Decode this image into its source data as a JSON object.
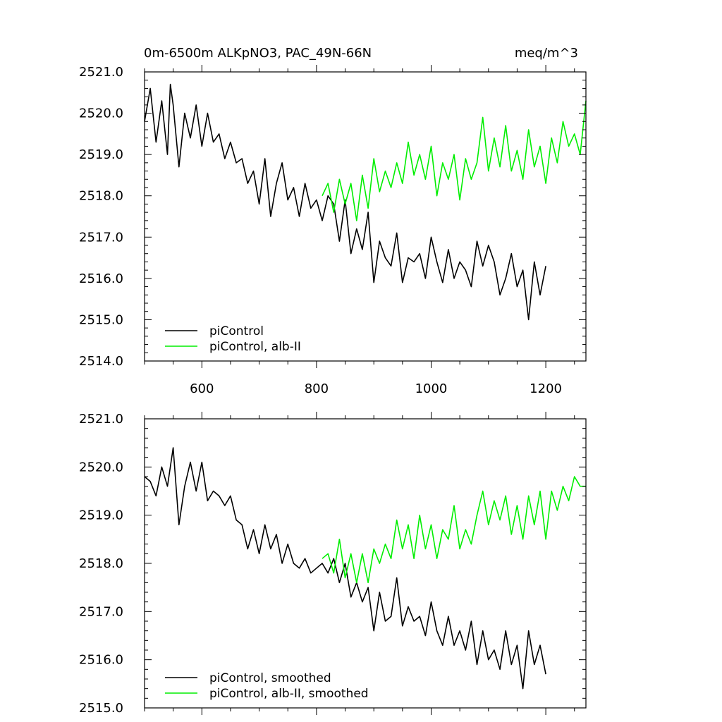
{
  "colors": {
    "piControl": "#000000",
    "albII": "#00ee00"
  },
  "chart_data": [
    {
      "type": "line",
      "title_left": "0m-6500m ALKpNO3, PAC_49N-66N",
      "title_right": "meq/m^3",
      "xlim": [
        500,
        1270
      ],
      "ylim": [
        2514,
        2521
      ],
      "xticks": [
        600,
        800,
        1000,
        1200
      ],
      "xtick_labels": [
        "600",
        "800",
        "1000",
        "1200"
      ],
      "yticks": [
        2514,
        2515,
        2516,
        2517,
        2518,
        2519,
        2520,
        2521
      ],
      "ytick_labels": [
        "2514.0",
        "2515.0",
        "2516.0",
        "2517.0",
        "2518.0",
        "2519.0",
        "2520.0",
        "2521.0"
      ],
      "legend_position": "bottom-left",
      "series": [
        {
          "name": "piControl",
          "color_key": "piControl",
          "x": [
            500,
            510,
            520,
            530,
            540,
            545,
            550,
            560,
            570,
            580,
            590,
            600,
            610,
            620,
            630,
            640,
            650,
            660,
            670,
            680,
            690,
            700,
            710,
            720,
            730,
            740,
            750,
            760,
            770,
            780,
            790,
            800,
            810,
            820,
            830,
            840,
            850,
            860,
            870,
            880,
            890,
            900,
            910,
            920,
            930,
            940,
            950,
            960,
            970,
            980,
            990,
            1000,
            1010,
            1020,
            1030,
            1040,
            1050,
            1060,
            1070,
            1080,
            1090,
            1100,
            1110,
            1120,
            1130,
            1140,
            1150,
            1160,
            1170,
            1180,
            1190,
            1200
          ],
          "y": [
            2519.8,
            2520.6,
            2519.3,
            2520.3,
            2519.0,
            2520.7,
            2520.2,
            2518.7,
            2520.0,
            2519.4,
            2520.2,
            2519.2,
            2520.0,
            2519.3,
            2519.5,
            2518.9,
            2519.3,
            2518.8,
            2518.9,
            2518.3,
            2518.6,
            2517.8,
            2518.9,
            2517.5,
            2518.3,
            2518.8,
            2517.9,
            2518.2,
            2517.5,
            2518.3,
            2517.7,
            2517.9,
            2517.4,
            2518.0,
            2517.8,
            2516.9,
            2517.9,
            2516.6,
            2517.2,
            2516.7,
            2517.6,
            2515.9,
            2516.9,
            2516.5,
            2516.3,
            2517.1,
            2515.9,
            2516.5,
            2516.4,
            2516.6,
            2516.0,
            2517.0,
            2516.4,
            2515.9,
            2516.7,
            2516.0,
            2516.4,
            2516.2,
            2515.8,
            2516.9,
            2516.3,
            2516.8,
            2516.4,
            2515.6,
            2516.0,
            2516.6,
            2515.8,
            2516.2,
            2515.0,
            2516.4,
            2515.6,
            2516.3
          ]
        },
        {
          "name": "piControl, alb-II",
          "color_key": "albII",
          "x": [
            810,
            820,
            830,
            840,
            850,
            860,
            870,
            880,
            890,
            900,
            910,
            920,
            930,
            940,
            950,
            960,
            970,
            980,
            990,
            1000,
            1010,
            1020,
            1030,
            1040,
            1050,
            1060,
            1070,
            1080,
            1090,
            1100,
            1110,
            1120,
            1130,
            1140,
            1150,
            1160,
            1170,
            1180,
            1190,
            1200,
            1210,
            1220,
            1230,
            1240,
            1250,
            1260,
            1270
          ],
          "y": [
            2518.0,
            2518.3,
            2517.6,
            2518.4,
            2517.8,
            2518.3,
            2517.4,
            2518.5,
            2517.7,
            2518.9,
            2518.1,
            2518.6,
            2518.2,
            2518.8,
            2518.3,
            2519.3,
            2518.5,
            2519.0,
            2518.4,
            2519.2,
            2518.0,
            2518.8,
            2518.4,
            2519.0,
            2517.9,
            2518.9,
            2518.4,
            2518.8,
            2519.9,
            2518.6,
            2519.4,
            2518.7,
            2519.7,
            2518.6,
            2519.1,
            2518.4,
            2519.6,
            2518.7,
            2519.2,
            2518.3,
            2519.4,
            2518.8,
            2519.8,
            2519.2,
            2519.5,
            2519.0,
            2520.3
          ]
        }
      ]
    },
    {
      "type": "line",
      "xlim": [
        500,
        1270
      ],
      "ylim": [
        2515,
        2521
      ],
      "xticks": [
        600,
        800,
        1000,
        1200
      ],
      "yticks": [
        2515,
        2516,
        2517,
        2518,
        2519,
        2520,
        2521
      ],
      "ytick_labels": [
        "2515.0",
        "2516.0",
        "2517.0",
        "2518.0",
        "2519.0",
        "2520.0",
        "2521.0"
      ],
      "legend_position": "bottom-left",
      "series": [
        {
          "name": "piControl, smoothed",
          "color_key": "piControl",
          "x": [
            500,
            510,
            520,
            530,
            540,
            550,
            560,
            570,
            580,
            590,
            600,
            610,
            620,
            630,
            640,
            650,
            660,
            670,
            680,
            690,
            700,
            710,
            720,
            730,
            740,
            750,
            760,
            770,
            780,
            790,
            800,
            810,
            820,
            830,
            840,
            850,
            860,
            870,
            880,
            890,
            900,
            910,
            920,
            930,
            940,
            950,
            960,
            970,
            980,
            990,
            1000,
            1010,
            1020,
            1030,
            1040,
            1050,
            1060,
            1070,
            1080,
            1090,
            1100,
            1110,
            1120,
            1130,
            1140,
            1150,
            1160,
            1170,
            1180,
            1190,
            1200
          ],
          "y": [
            2519.8,
            2519.7,
            2519.4,
            2520.0,
            2519.6,
            2520.4,
            2518.8,
            2519.6,
            2520.1,
            2519.5,
            2520.1,
            2519.3,
            2519.5,
            2519.4,
            2519.2,
            2519.4,
            2518.9,
            2518.8,
            2518.3,
            2518.7,
            2518.2,
            2518.8,
            2518.3,
            2518.6,
            2518.0,
            2518.4,
            2518.0,
            2517.9,
            2518.1,
            2517.8,
            2517.9,
            2518.0,
            2517.8,
            2518.1,
            2517.6,
            2518.0,
            2517.3,
            2517.6,
            2517.2,
            2517.5,
            2516.6,
            2517.4,
            2516.8,
            2516.9,
            2517.7,
            2516.7,
            2517.1,
            2516.8,
            2516.9,
            2516.5,
            2517.2,
            2516.6,
            2516.3,
            2516.9,
            2516.3,
            2516.6,
            2516.2,
            2516.8,
            2515.9,
            2516.6,
            2516.0,
            2516.2,
            2515.8,
            2516.6,
            2515.9,
            2516.3,
            2515.4,
            2516.6,
            2515.9,
            2516.3,
            2515.7
          ]
        },
        {
          "name": "piControl, alb-II, smoothed",
          "color_key": "albII",
          "x": [
            810,
            820,
            830,
            840,
            850,
            860,
            870,
            880,
            890,
            900,
            910,
            920,
            930,
            940,
            950,
            960,
            970,
            980,
            990,
            1000,
            1010,
            1020,
            1030,
            1040,
            1050,
            1060,
            1070,
            1080,
            1090,
            1100,
            1110,
            1120,
            1130,
            1140,
            1150,
            1160,
            1170,
            1180,
            1190,
            1200,
            1210,
            1220,
            1230,
            1240,
            1250,
            1260,
            1270
          ],
          "y": [
            2518.1,
            2518.2,
            2517.8,
            2518.5,
            2517.7,
            2518.2,
            2517.6,
            2518.2,
            2517.6,
            2518.3,
            2518.0,
            2518.4,
            2518.1,
            2518.9,
            2518.3,
            2518.8,
            2518.1,
            2519.0,
            2518.3,
            2518.8,
            2518.1,
            2518.7,
            2518.5,
            2519.2,
            2518.3,
            2518.7,
            2518.4,
            2519.0,
            2519.5,
            2518.8,
            2519.3,
            2518.9,
            2519.4,
            2518.6,
            2519.2,
            2518.5,
            2519.4,
            2518.8,
            2519.5,
            2518.5,
            2519.5,
            2519.1,
            2519.6,
            2519.3,
            2519.8,
            2519.6,
            2519.6
          ]
        }
      ]
    }
  ]
}
